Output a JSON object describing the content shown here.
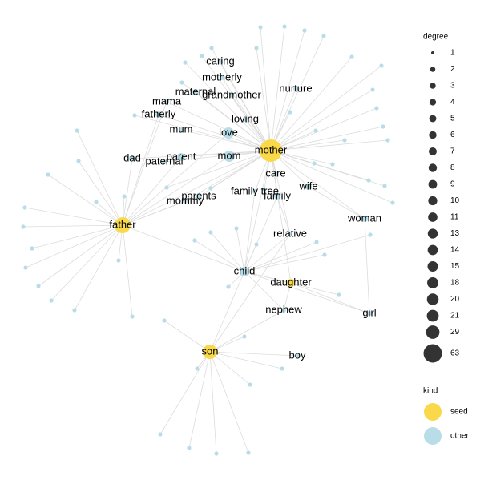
{
  "nodes": [
    {
      "label": "caring"
    },
    {
      "label": "motherly"
    },
    {
      "label": "maternal"
    },
    {
      "label": "grandmother"
    },
    {
      "label": "nurture"
    },
    {
      "label": "mama"
    },
    {
      "label": "fatherly"
    },
    {
      "label": "loving"
    },
    {
      "label": "mum"
    },
    {
      "label": "love"
    },
    {
      "label": "mother"
    },
    {
      "label": "dad"
    },
    {
      "label": "paternal"
    },
    {
      "label": "parent"
    },
    {
      "label": "mom"
    },
    {
      "label": "care"
    },
    {
      "label": "wife"
    },
    {
      "label": "parents"
    },
    {
      "label": "family tree"
    },
    {
      "label": "family"
    },
    {
      "label": "mommy"
    },
    {
      "label": "woman"
    },
    {
      "label": "father"
    },
    {
      "label": "relative"
    },
    {
      "label": "child"
    },
    {
      "label": "daughter"
    },
    {
      "label": "nephew"
    },
    {
      "label": "girl"
    },
    {
      "label": "son"
    },
    {
      "label": "boy"
    }
  ],
  "legend": {
    "degree": {
      "title": "degree",
      "values": [
        1,
        2,
        3,
        4,
        5,
        6,
        7,
        8,
        9,
        10,
        11,
        13,
        14,
        15,
        18,
        20,
        21,
        29,
        63
      ]
    },
    "kind": {
      "title": "kind",
      "items": [
        "seed",
        "other"
      ]
    }
  }
}
